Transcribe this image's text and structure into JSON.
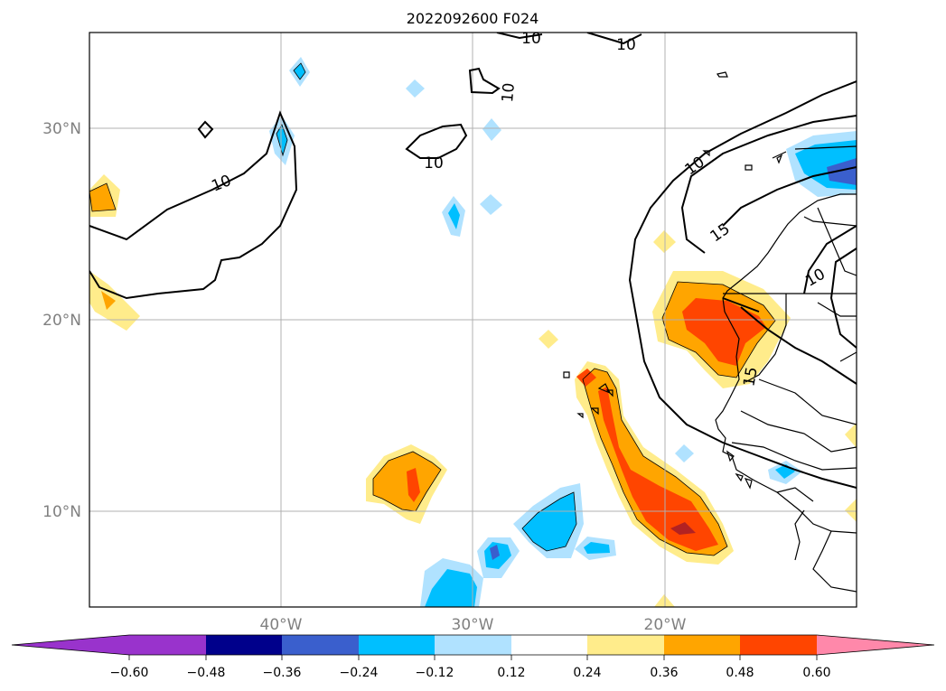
{
  "title": "2022092600 F024",
  "map": {
    "lat_labels": [
      "30°N",
      "20°N",
      "10°N"
    ],
    "lon_labels": [
      "40°W",
      "30°W",
      "20°W"
    ],
    "contour_labels": [
      "10",
      "10",
      "10",
      "10",
      "10",
      "10",
      "10",
      "15",
      "15"
    ]
  },
  "colorbar": {
    "ticks": [
      "−0.60",
      "−0.48",
      "−0.36",
      "−0.24",
      "−0.12",
      "0.12",
      "0.24",
      "0.36",
      "0.48",
      "0.60"
    ],
    "colors": {
      "under": "#9933cc",
      "bins": [
        "#00008b",
        "#3a5fcd",
        "#00bfff",
        "#b0e2ff",
        "#ffffff",
        "#ffec8b",
        "#ffa500",
        "#ff4500",
        "#b22222"
      ],
      "bin_first": "#9933cc",
      "over": "#ff88aa"
    }
  },
  "chart_data": {
    "type": "heatmap",
    "title": "2022092600 F024",
    "extent_lon": [
      -50,
      -10
    ],
    "extent_lat": [
      5,
      35
    ],
    "gridlines_lon": [
      -40,
      -30,
      -20
    ],
    "gridlines_lat": [
      10,
      20,
      30
    ],
    "contour_levels": [
      10,
      15
    ],
    "colorbar_levels": [
      -0.6,
      -0.48,
      -0.36,
      -0.24,
      -0.12,
      0.12,
      0.24,
      0.36,
      0.48,
      0.6
    ],
    "colorbar_extend": "both"
  }
}
